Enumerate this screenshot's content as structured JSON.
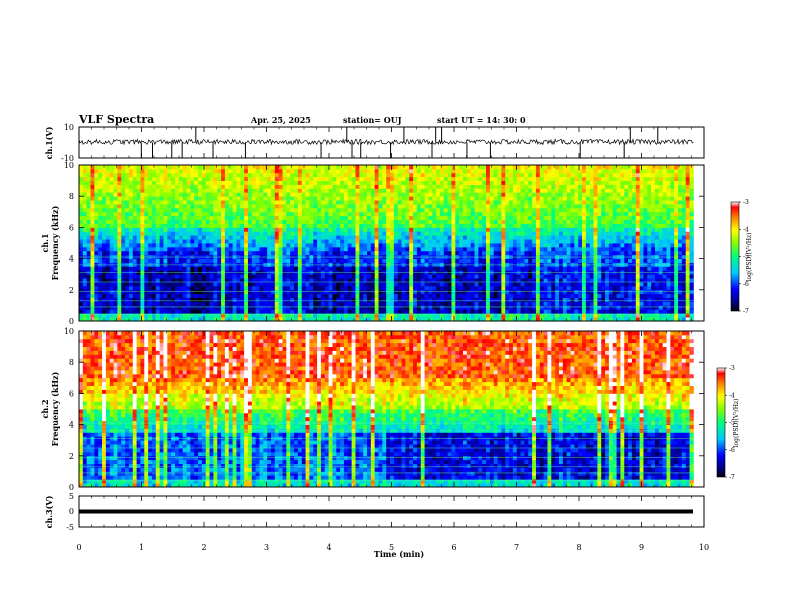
{
  "header": {
    "title": "VLF Spectra",
    "date": "Apr. 25, 2025",
    "station": "station= OUJ",
    "start": "start  UT =   14: 30: 0"
  },
  "chart_data": [
    {
      "type": "line",
      "panel": "ch1-waveform",
      "ylabel": "ch.1(V)",
      "ylim": [
        -10,
        10
      ],
      "yticks": [
        "10",
        "-10"
      ],
      "xlim": [
        0,
        10
      ],
      "x_extent": 9.83
    },
    {
      "type": "heatmap",
      "panel": "ch1-spectrogram",
      "ylabel_top": "ch.1",
      "ylabel": "Frequency (kHz)",
      "ylim": [
        0,
        10
      ],
      "yticks": [
        "0",
        "2",
        "4",
        "6",
        "8",
        "10"
      ],
      "xlim": [
        0,
        10
      ],
      "x_extent": 9.83,
      "colorbar": {
        "label": "log(PSD)(V²/Hz)",
        "range": [
          -7,
          -3
        ],
        "ticks": [
          "-3",
          "-4",
          "-5",
          "-6",
          "-7"
        ]
      }
    },
    {
      "type": "heatmap",
      "panel": "ch2-spectrogram",
      "ylabel_top": "ch.2",
      "ylabel": "Frequency (kHz)",
      "ylim": [
        0,
        10
      ],
      "yticks": [
        "0",
        "2",
        "4",
        "6",
        "8",
        "10"
      ],
      "xlim": [
        0,
        10
      ],
      "x_extent": 9.83,
      "colorbar": {
        "label": "log(PSD)(V²/Hz)",
        "range": [
          -7,
          -3
        ],
        "ticks": [
          "-3",
          "-4",
          "-5",
          "-6",
          "-7"
        ]
      }
    },
    {
      "type": "line",
      "panel": "ch3-waveform",
      "ylabel": "ch.3(V)",
      "ylim": [
        -5,
        5
      ],
      "yticks": [
        "5",
        "0",
        "-5"
      ],
      "xlim": [
        0,
        10
      ],
      "x_extent": 9.83,
      "xlabel": "Time (min)",
      "xticks": [
        "0",
        "1",
        "2",
        "3",
        "4",
        "5",
        "6",
        "7",
        "8",
        "9",
        "10"
      ]
    }
  ]
}
